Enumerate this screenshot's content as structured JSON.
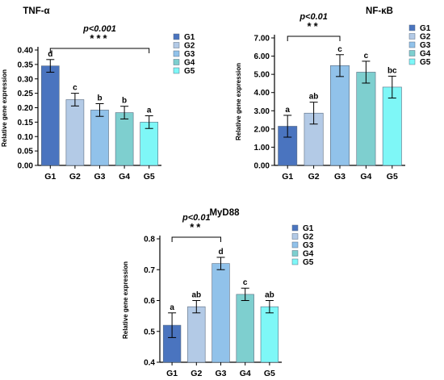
{
  "chart_data": [
    {
      "type": "bar",
      "title": "TNF-α",
      "ylabel": "Relative gene expression",
      "categories": [
        "G1",
        "G2",
        "G3",
        "G4",
        "G5"
      ],
      "values": [
        0.345,
        0.228,
        0.192,
        0.183,
        0.15
      ],
      "errors": [
        0.022,
        0.022,
        0.022,
        0.022,
        0.022
      ],
      "letters": [
        "d",
        "c",
        "b",
        "b",
        "a"
      ],
      "ylim": [
        0,
        0.4
      ],
      "yticks": [
        "0.00",
        "0.05",
        "0.10",
        "0.15",
        "0.20",
        "0.25",
        "0.30",
        "0.35",
        "0.40"
      ],
      "significance": {
        "p_label": "p<0.001",
        "stars": "***",
        "from": "G1",
        "to": "G5"
      },
      "legend": [
        "G1",
        "G2",
        "G3",
        "G4",
        "G5"
      ]
    },
    {
      "type": "bar",
      "title": "NF-κB",
      "ylabel": "Relative gene expression",
      "categories": [
        "G1",
        "G2",
        "G3",
        "G4",
        "G5"
      ],
      "values": [
        2.15,
        2.87,
        5.48,
        5.12,
        4.3
      ],
      "errors": [
        0.6,
        0.6,
        0.6,
        0.6,
        0.6
      ],
      "letters": [
        "a",
        "ab",
        "c",
        "c",
        "bc"
      ],
      "ylim": [
        0,
        7
      ],
      "yticks": [
        "0.00",
        "1.00",
        "2.00",
        "3.00",
        "4.00",
        "5.00",
        "6.00",
        "7.00"
      ],
      "significance": {
        "p_label": "p<0.01",
        "stars": "**",
        "from": "G1",
        "to": "G3"
      },
      "legend": [
        "G1",
        "G2",
        "G3",
        "G4",
        "G5"
      ]
    },
    {
      "type": "bar",
      "title": "MyD88",
      "ylabel": "Relative gene expression",
      "categories": [
        "G1",
        "G2",
        "G3",
        "G4",
        "G5"
      ],
      "values": [
        0.52,
        0.58,
        0.72,
        0.62,
        0.58
      ],
      "errors": [
        0.04,
        0.02,
        0.02,
        0.02,
        0.02
      ],
      "letters": [
        "a",
        "ab",
        "d",
        "c",
        "ab"
      ],
      "ylim": [
        0.4,
        0.8
      ],
      "yticks": [
        "0.4",
        "0.5",
        "0.6",
        "0.7",
        "0.8"
      ],
      "significance": {
        "p_label": "p<0.01",
        "stars": "**",
        "from": "G1",
        "to": "G3"
      },
      "legend": [
        "G1",
        "G2",
        "G3",
        "G4",
        "G5"
      ]
    }
  ],
  "colors": [
    "#4a74bf",
    "#b3cae6",
    "#91c2ea",
    "#7ecfcf",
    "#7ef7f7"
  ]
}
